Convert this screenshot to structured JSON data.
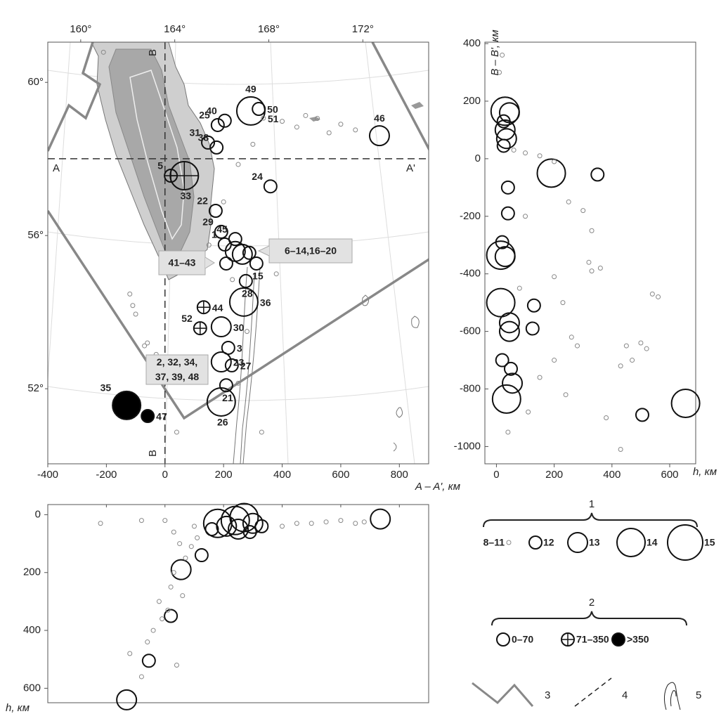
{
  "map": {
    "lonlim": [
      158.6,
      174.8
    ],
    "lon_ticks": [
      {
        "value": 160,
        "label": "160°"
      },
      {
        "value": 164,
        "label": "164°"
      },
      {
        "value": 168,
        "label": "168°"
      },
      {
        "value": 172,
        "label": "172°"
      }
    ],
    "latlim": [
      50.04,
      61.05
    ],
    "lat_ticks": [
      {
        "value": 60,
        "label": "60°"
      },
      {
        "value": 56,
        "label": "56°"
      },
      {
        "value": 52,
        "label": "52°"
      }
    ],
    "section_labels": {
      "a": "A",
      "a_prime": "A'",
      "b_top": "B",
      "b_bottom": "B"
    },
    "callouts": [
      {
        "lines": [
          "6–14,16–20"
        ]
      },
      {
        "lines": [
          "41–43"
        ]
      },
      {
        "lines": [
          "2, 32, 34,",
          "37, 39, 48"
        ]
      }
    ],
    "events": [
      {
        "label": "49",
        "a": 293,
        "b": 166,
        "mag": 14
      },
      {
        "label": "50",
        "a": 320,
        "b": 173,
        "mag": 12
      },
      {
        "label": "51",
        "a": 336,
        "b": 141,
        "mag": 11
      },
      {
        "label": "46",
        "a": 732,
        "b": 80,
        "mag": 13
      },
      {
        "label": "25",
        "a": 180,
        "b": 117,
        "mag": 12
      },
      {
        "label": "40",
        "a": 204,
        "b": 132,
        "mag": 12
      },
      {
        "label": "31",
        "a": 147,
        "b": 56,
        "mag": 12
      },
      {
        "label": "38",
        "a": 176,
        "b": 39,
        "mag": 12
      },
      {
        "label": "5",
        "a": 20,
        "b": -59,
        "mag": 12,
        "depth_class": 1
      },
      {
        "label": "33",
        "a": 66,
        "b": -59,
        "mag": 14,
        "depth_class": 1
      },
      {
        "label": "24",
        "a": 360,
        "b": -96,
        "mag": 12
      },
      {
        "label": "22",
        "a": 173,
        "b": -181,
        "mag": 12
      },
      {
        "label": "29",
        "a": 192,
        "b": -254,
        "mag": 12
      },
      {
        "label": "45",
        "a": 240,
        "b": -279,
        "mag": 12
      },
      {
        "label": "1",
        "a": 204,
        "b": -298,
        "mag": 12
      },
      {
        "a": 264,
        "b": -332,
        "mag": 13
      },
      {
        "a": 240,
        "b": -322,
        "mag": 13
      },
      {
        "a": 288,
        "b": -327,
        "mag": 12
      },
      {
        "a": 209,
        "b": -364,
        "mag": 12
      },
      {
        "label": "15",
        "a": 312,
        "b": -364,
        "mag": 12
      },
      {
        "label": "28",
        "a": 276,
        "b": -425,
        "mag": 12
      },
      {
        "label": "36",
        "a": 269,
        "b": -498,
        "mag": 14
      },
      {
        "label": "44",
        "a": 132,
        "b": -516,
        "mag": 12,
        "depth_class": 1
      },
      {
        "label": "30",
        "a": 192,
        "b": -584,
        "mag": 13
      },
      {
        "label": "52",
        "a": 120,
        "b": -589,
        "mag": 12,
        "depth_class": 1
      },
      {
        "label": "3",
        "a": 216,
        "b": -657,
        "mag": 12
      },
      {
        "label": "23",
        "a": 192,
        "b": -706,
        "mag": 13
      },
      {
        "label": "27",
        "a": 228,
        "b": -718,
        "mag": 12
      },
      {
        "label": "21",
        "a": 209,
        "b": -787,
        "mag": 12
      },
      {
        "label": "26",
        "a": 192,
        "b": -845,
        "mag": 14
      },
      {
        "label": "35",
        "a": -131,
        "b": -857,
        "mag": 14,
        "depth_class": 2
      },
      {
        "label": "47",
        "a": -59,
        "b": -894,
        "mag": 12,
        "depth_class": 2
      },
      {
        "a": -120,
        "b": -470,
        "mag": 11
      },
      {
        "a": -110,
        "b": -510,
        "mag": 11
      },
      {
        "a": -100,
        "b": -540,
        "mag": 11
      },
      {
        "a": -60,
        "b": -640,
        "mag": 11
      },
      {
        "a": -70,
        "b": -650,
        "mag": 11
      },
      {
        "a": -30,
        "b": -680,
        "mag": 11
      },
      {
        "a": -20,
        "b": -700,
        "mag": 11
      },
      {
        "a": 40,
        "b": -950,
        "mag": 11
      },
      {
        "a": -210,
        "b": 370,
        "mag": 11
      },
      {
        "a": 400,
        "b": 130,
        "mag": 11
      },
      {
        "a": 450,
        "b": 110,
        "mag": 11
      },
      {
        "a": 480,
        "b": 150,
        "mag": 11
      },
      {
        "a": 520,
        "b": 140,
        "mag": 11
      },
      {
        "a": 600,
        "b": 120,
        "mag": 11
      },
      {
        "a": 650,
        "b": 100,
        "mag": 11
      },
      {
        "a": 560,
        "b": 90,
        "mag": 11
      },
      {
        "a": 300,
        "b": 50,
        "mag": 11
      },
      {
        "a": 250,
        "b": -20,
        "mag": 11
      },
      {
        "a": 200,
        "b": -150,
        "mag": 11
      },
      {
        "a": 230,
        "b": -420,
        "mag": 11
      },
      {
        "a": 280,
        "b": -600,
        "mag": 11
      },
      {
        "a": 250,
        "b": -780,
        "mag": 11
      },
      {
        "a": 100,
        "b": -700,
        "mag": 11
      },
      {
        "a": 150,
        "b": -300,
        "mag": 11
      },
      {
        "a": 330,
        "b": -950,
        "mag": 11
      },
      {
        "a": 380,
        "b": -400,
        "mag": 11
      }
    ]
  },
  "section_aa": {
    "x_label": "A – A', км",
    "y_label": "h, км",
    "xlim": [
      -400,
      900
    ],
    "xticks": [
      -400,
      -200,
      0,
      200,
      400,
      600,
      800
    ],
    "ylim": [
      650,
      -35
    ],
    "yticks": [
      0,
      200,
      400,
      600
    ],
    "events": [
      {
        "x": -131,
        "h": 640,
        "mag": 13
      },
      {
        "x": -55,
        "h": 505,
        "mag": 12
      },
      {
        "x": 20,
        "h": 350,
        "mag": 12
      },
      {
        "x": 55,
        "h": 190,
        "mag": 13
      },
      {
        "x": 125,
        "h": 140,
        "mag": 12
      },
      {
        "x": 735,
        "h": 15,
        "mag": 13
      },
      {
        "x": 180,
        "h": 30,
        "mag": 14
      },
      {
        "x": 210,
        "h": 40,
        "mag": 13
      },
      {
        "x": 240,
        "h": 20,
        "mag": 14
      },
      {
        "x": 270,
        "h": 10,
        "mag": 14
      },
      {
        "x": 300,
        "h": 30,
        "mag": 13
      },
      {
        "x": 330,
        "h": 40,
        "mag": 12
      },
      {
        "x": 160,
        "h": 50,
        "mag": 12
      },
      {
        "x": 250,
        "h": 50,
        "mag": 13
      },
      {
        "x": 290,
        "h": 60,
        "mag": 12
      },
      {
        "x": -220,
        "h": 30,
        "mag": 11
      },
      {
        "x": -80,
        "h": 20,
        "mag": 11
      },
      {
        "x": 0,
        "h": 20,
        "mag": 11
      },
      {
        "x": 30,
        "h": 60,
        "mag": 11
      },
      {
        "x": 50,
        "h": 100,
        "mag": 11
      },
      {
        "x": 70,
        "h": 150,
        "mag": 11
      },
      {
        "x": 20,
        "h": 250,
        "mag": 11
      },
      {
        "x": -20,
        "h": 300,
        "mag": 11
      },
      {
        "x": -40,
        "h": 400,
        "mag": 11
      },
      {
        "x": -60,
        "h": 440,
        "mag": 11
      },
      {
        "x": -80,
        "h": 560,
        "mag": 11
      },
      {
        "x": -120,
        "h": 480,
        "mag": 11
      },
      {
        "x": 10,
        "h": 330,
        "mag": 11
      },
      {
        "x": 90,
        "h": 110,
        "mag": 11
      },
      {
        "x": 110,
        "h": 80,
        "mag": 11
      },
      {
        "x": 400,
        "h": 40,
        "mag": 11
      },
      {
        "x": 450,
        "h": 30,
        "mag": 11
      },
      {
        "x": 500,
        "h": 30,
        "mag": 11
      },
      {
        "x": 550,
        "h": 25,
        "mag": 11
      },
      {
        "x": 600,
        "h": 20,
        "mag": 11
      },
      {
        "x": 650,
        "h": 30,
        "mag": 11
      },
      {
        "x": 680,
        "h": 25,
        "mag": 11
      },
      {
        "x": 30,
        "h": 200,
        "mag": 11
      },
      {
        "x": -10,
        "h": 360,
        "mag": 11
      },
      {
        "x": 100,
        "h": 40,
        "mag": 11
      },
      {
        "x": 60,
        "h": 280,
        "mag": 11
      },
      {
        "x": 40,
        "h": 520,
        "mag": 11
      }
    ]
  },
  "section_bb": {
    "x_label": "h, км",
    "y_label": "B – B', км",
    "xlim": [
      -40,
      690
    ],
    "xticks": [
      0,
      200,
      400,
      600
    ],
    "ylim": [
      -1060,
      405
    ],
    "yticks": [
      400,
      200,
      0,
      -200,
      -400,
      -600,
      -800,
      -1000
    ],
    "events": [
      {
        "h": 30,
        "y": 165,
        "mag": 14
      },
      {
        "h": 45,
        "y": 160,
        "mag": 13
      },
      {
        "h": 25,
        "y": 130,
        "mag": 12
      },
      {
        "h": 30,
        "y": 100,
        "mag": 13
      },
      {
        "h": 35,
        "y": 70,
        "mag": 13
      },
      {
        "h": 25,
        "y": 45,
        "mag": 12
      },
      {
        "h": 190,
        "y": -50,
        "mag": 14
      },
      {
        "h": 350,
        "y": -55,
        "mag": 12
      },
      {
        "h": 40,
        "y": -100,
        "mag": 12
      },
      {
        "h": 40,
        "y": -190,
        "mag": 12
      },
      {
        "h": 15,
        "y": -335,
        "mag": 14
      },
      {
        "h": 30,
        "y": -340,
        "mag": 13
      },
      {
        "h": 20,
        "y": -290,
        "mag": 12
      },
      {
        "h": 15,
        "y": -500,
        "mag": 14
      },
      {
        "h": 130,
        "y": -510,
        "mag": 12
      },
      {
        "h": 125,
        "y": -590,
        "mag": 12
      },
      {
        "h": 45,
        "y": -570,
        "mag": 13
      },
      {
        "h": 45,
        "y": -600,
        "mag": 13
      },
      {
        "h": 20,
        "y": -700,
        "mag": 12
      },
      {
        "h": 50,
        "y": -730,
        "mag": 12
      },
      {
        "h": 55,
        "y": -780,
        "mag": 13
      },
      {
        "h": 35,
        "y": -835,
        "mag": 14
      },
      {
        "h": 505,
        "y": -890,
        "mag": 12
      },
      {
        "h": 655,
        "y": -850,
        "mag": 14
      },
      {
        "h": 20,
        "y": 360,
        "mag": 11
      },
      {
        "h": 10,
        "y": 300,
        "mag": 11
      },
      {
        "h": 60,
        "y": 30,
        "mag": 11
      },
      {
        "h": 100,
        "y": 20,
        "mag": 11
      },
      {
        "h": 150,
        "y": 10,
        "mag": 11
      },
      {
        "h": 200,
        "y": -10,
        "mag": 11
      },
      {
        "h": 250,
        "y": -150,
        "mag": 11
      },
      {
        "h": 300,
        "y": -180,
        "mag": 11
      },
      {
        "h": 330,
        "y": -250,
        "mag": 11
      },
      {
        "h": 320,
        "y": -360,
        "mag": 11
      },
      {
        "h": 330,
        "y": -390,
        "mag": 11
      },
      {
        "h": 360,
        "y": -380,
        "mag": 11
      },
      {
        "h": 200,
        "y": -410,
        "mag": 11
      },
      {
        "h": 230,
        "y": -500,
        "mag": 11
      },
      {
        "h": 260,
        "y": -620,
        "mag": 11
      },
      {
        "h": 280,
        "y": -650,
        "mag": 11
      },
      {
        "h": 200,
        "y": -700,
        "mag": 11
      },
      {
        "h": 150,
        "y": -760,
        "mag": 11
      },
      {
        "h": 240,
        "y": -820,
        "mag": 11
      },
      {
        "h": 380,
        "y": -900,
        "mag": 11
      },
      {
        "h": 430,
        "y": -1010,
        "mag": 11
      },
      {
        "h": 500,
        "y": -640,
        "mag": 11
      },
      {
        "h": 520,
        "y": -660,
        "mag": 11
      },
      {
        "h": 540,
        "y": -470,
        "mag": 11
      },
      {
        "h": 560,
        "y": -480,
        "mag": 11
      },
      {
        "h": 470,
        "y": -700,
        "mag": 11
      },
      {
        "h": 430,
        "y": -720,
        "mag": 11
      },
      {
        "h": 450,
        "y": -650,
        "mag": 11
      },
      {
        "h": 100,
        "y": -200,
        "mag": 11
      },
      {
        "h": 80,
        "y": -450,
        "mag": 11
      },
      {
        "h": 40,
        "y": -950,
        "mag": 11
      },
      {
        "h": 110,
        "y": -880,
        "mag": 11
      }
    ]
  },
  "legend": {
    "magnitude": {
      "number": "1",
      "items": [
        {
          "value": 11,
          "label": "8–11"
        },
        12,
        13,
        14,
        15
      ]
    },
    "depth": {
      "number": "2",
      "items": [
        {
          "value": 0,
          "label": "0–70"
        },
        {
          "value": 1,
          "label": "71–350"
        },
        {
          "value": 2,
          "label": ">350"
        }
      ]
    },
    "symbols": [
      "3",
      "4",
      "5"
    ]
  }
}
